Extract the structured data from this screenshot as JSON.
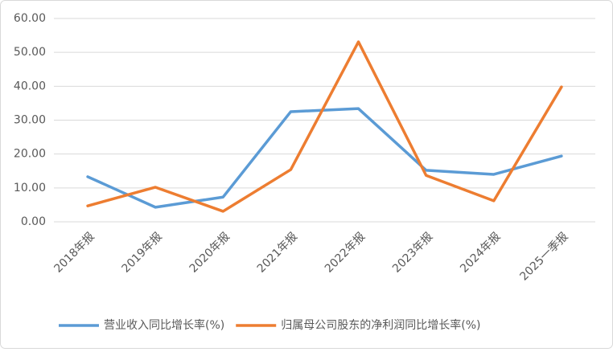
{
  "chart_data": {
    "type": "line",
    "categories": [
      "2018年报",
      "2019年报",
      "2020年报",
      "2021年报",
      "2022年报",
      "2023年报",
      "2024年报",
      "2025一季报"
    ],
    "series": [
      {
        "name": "营业收入同比增长率(%)",
        "color": "#5b9bd5",
        "values": [
          13.3,
          4.3,
          7.3,
          32.5,
          33.4,
          15.2,
          14.0,
          19.4
        ]
      },
      {
        "name": "归属母公司股东的净利润同比增长率(%)",
        "color": "#ed7d31",
        "values": [
          4.7,
          10.2,
          3.1,
          15.4,
          53.1,
          13.7,
          6.2,
          39.8
        ]
      }
    ],
    "ylim": [
      0,
      60
    ],
    "yticks": [
      {
        "value": 0,
        "label": "0.00"
      },
      {
        "value": 10,
        "label": "10.00"
      },
      {
        "value": 20,
        "label": "20.00"
      },
      {
        "value": 30,
        "label": "30.00"
      },
      {
        "value": 40,
        "label": "40.00"
      },
      {
        "value": 50,
        "label": "50.00"
      },
      {
        "value": 60,
        "label": "60.00"
      }
    ],
    "grid": true,
    "legend": "bottom"
  }
}
